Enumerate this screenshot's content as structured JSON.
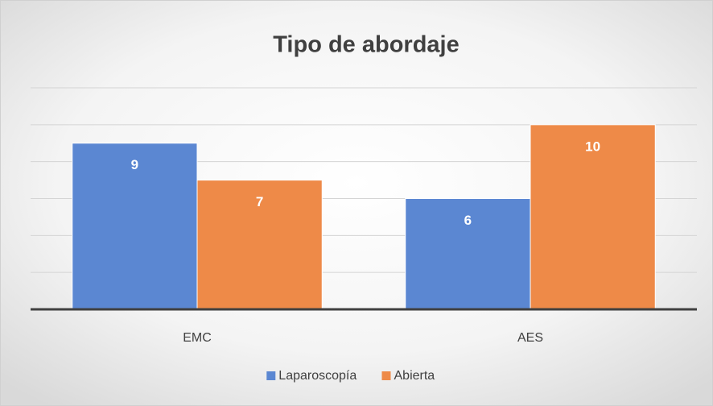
{
  "chart_data": {
    "type": "bar",
    "title": "Tipo de abordaje",
    "categories": [
      "EMC",
      "AES"
    ],
    "series": [
      {
        "name": "Laparoscopía",
        "color": "#5b87d2",
        "values": [
          9,
          6
        ]
      },
      {
        "name": "Abierta",
        "color": "#ee8a48",
        "values": [
          7,
          10
        ]
      }
    ],
    "ylim": [
      0,
      12
    ],
    "yticks": [
      0,
      2,
      4,
      6,
      8,
      10,
      12
    ],
    "grid": true,
    "legend": "bottom"
  }
}
